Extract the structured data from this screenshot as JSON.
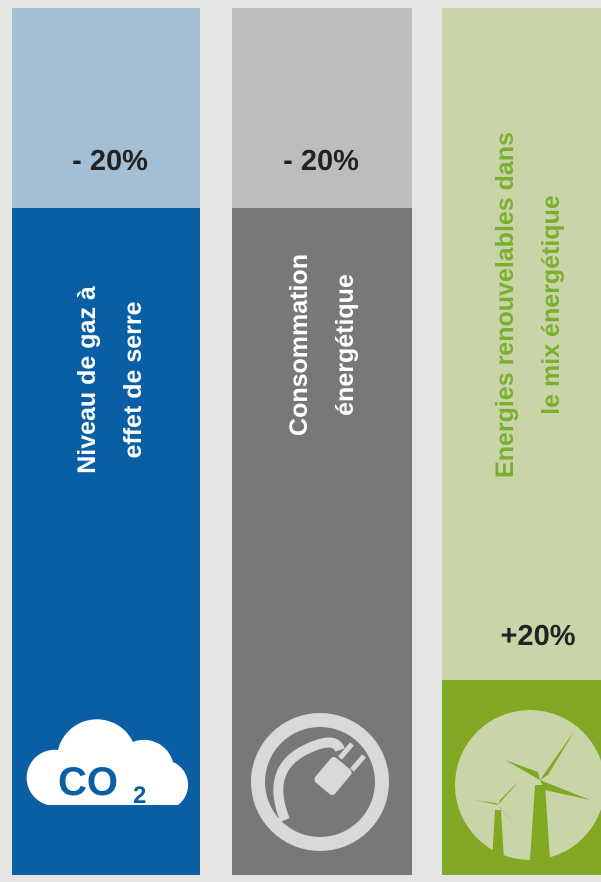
{
  "columns": [
    {
      "label": [
        "Niveau de gaz à",
        "effet de serre"
      ],
      "value": "- 20%",
      "icon_text": [
        "CO",
        "2"
      ]
    },
    {
      "label": [
        "Consommation",
        "énergétique"
      ],
      "value": "- 20%"
    },
    {
      "label": [
        "Energies renouvelables dans",
        "le mix énergétique"
      ],
      "value": "+20%"
    }
  ]
}
